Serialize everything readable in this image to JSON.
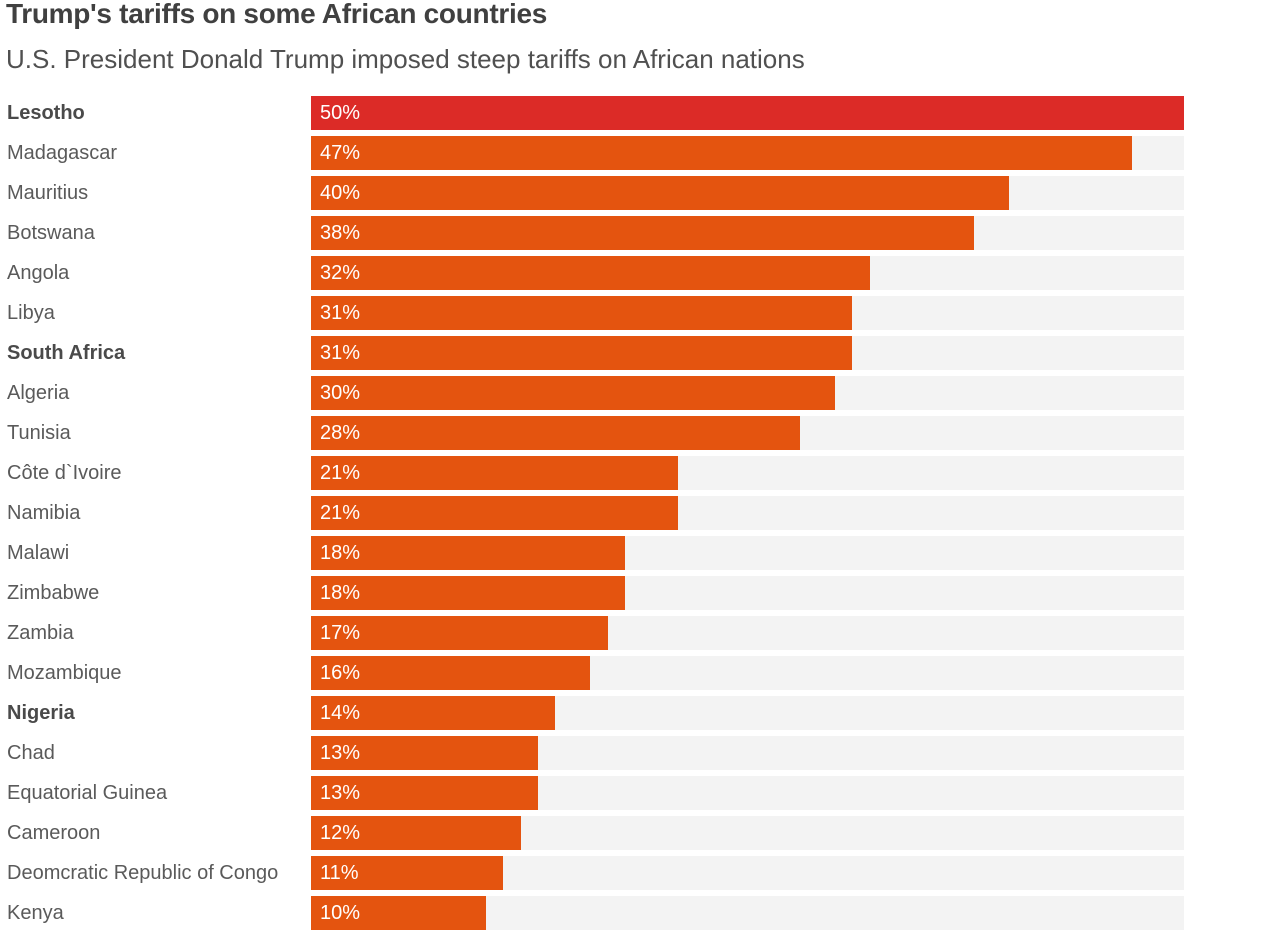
{
  "title": "Trump's tariffs on some African countries",
  "subtitle": "U.S. President Donald Trump imposed steep tariffs on African nations",
  "colors": {
    "bar": "#e4540f",
    "highlight_bar": "#dc2b27",
    "track": "#f3f3f3",
    "value_text": "#ffffff"
  },
  "chart_data": {
    "type": "bar",
    "orientation": "horizontal",
    "title": "Trump's tariffs on some African countries",
    "subtitle": "U.S. President Donald Trump imposed steep tariffs on African nations",
    "xlim": [
      0,
      50
    ],
    "grid": false,
    "categories": [
      "Lesotho",
      "Madagascar",
      "Mauritius",
      "Botswana",
      "Angola",
      "Libya",
      "South Africa",
      "Algeria",
      "Tunisia",
      "Côte d`Ivoire",
      "Namibia",
      "Malawi",
      "Zimbabwe",
      "Zambia",
      "Mozambique",
      "Nigeria",
      "Chad",
      "Equatorial Guinea",
      "Cameroon",
      "Deomcratic Republic of Congo",
      "Kenya"
    ],
    "values": [
      50,
      47,
      40,
      38,
      32,
      31,
      31,
      30,
      28,
      21,
      21,
      18,
      18,
      17,
      16,
      14,
      13,
      13,
      12,
      11,
      10
    ],
    "value_labels": [
      "50%",
      "47%",
      "40%",
      "38%",
      "32%",
      "31%",
      "31%",
      "30%",
      "28%",
      "21%",
      "21%",
      "18%",
      "18%",
      "17%",
      "16%",
      "14%",
      "13%",
      "13%",
      "12%",
      "11%",
      "10%"
    ],
    "bold_labels": [
      "Lesotho",
      "South Africa",
      "Nigeria"
    ],
    "highlighted": [
      "Lesotho"
    ]
  }
}
